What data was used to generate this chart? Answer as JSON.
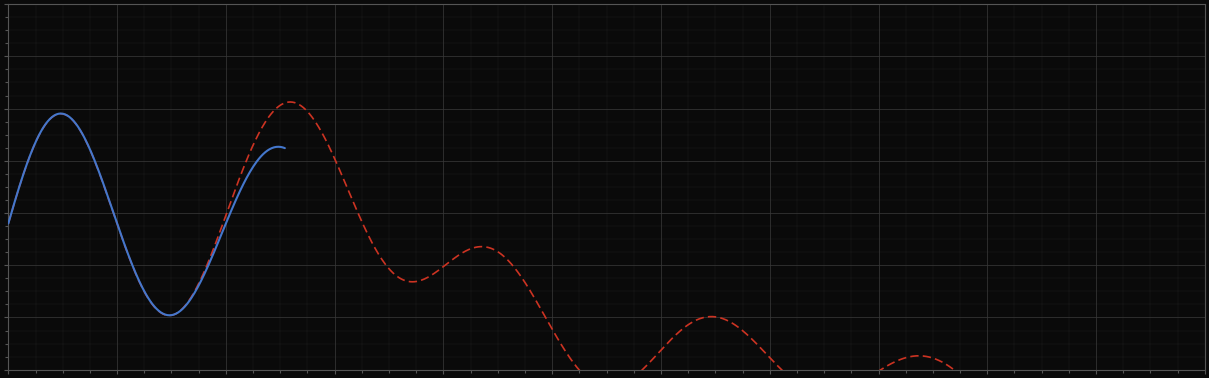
{
  "background_color": "#0a0a0a",
  "plot_bg_color": "#0a0a0a",
  "grid_color": "#383838",
  "axes_color": "#555555",
  "tick_color": "#555555",
  "blue_line_color": "#4477cc",
  "red_line_color": "#cc3322",
  "xlim": [
    0,
    11
  ],
  "ylim": [
    0,
    7
  ],
  "n_points": 1100,
  "figsize": [
    12.09,
    3.78
  ],
  "dpi": 100,
  "major_x": 1,
  "major_y": 1,
  "minor_x": 0.25,
  "minor_y": 0.25,
  "blue_end_x": 2.55,
  "diverge_x": 2.0
}
